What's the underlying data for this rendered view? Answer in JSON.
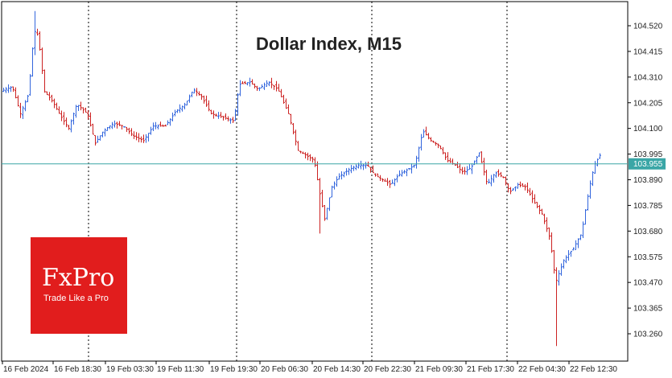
{
  "chart_data": {
    "type": "candlestick",
    "title": "Dollar Index, M15",
    "y_ticks": [
      104.52,
      104.415,
      104.31,
      104.205,
      104.1,
      103.995,
      103.89,
      103.785,
      103.68,
      103.575,
      103.47,
      103.365,
      103.26
    ],
    "ylim": [
      103.2,
      104.64
    ],
    "current_price": 103.955,
    "x_labels": [
      "16 Feb 2024",
      "16 Feb 18:30",
      "19 Feb 03:30",
      "19 Feb 11:30",
      "19 Feb 19:30",
      "20 Feb 06:30",
      "20 Feb 14:30",
      "20 Feb 22:30",
      "21 Feb 09:30",
      "21 Feb 17:30",
      "22 Feb 04:30",
      "22 Feb 12:30"
    ],
    "session_separators": [
      "16 Feb 18:30",
      "19 Feb 19:30",
      "20 Feb 22:30",
      "21 Feb 17:30"
    ],
    "series_path": [
      [
        0,
        104.25
      ],
      [
        6,
        104.26
      ],
      [
        15,
        104.27
      ],
      [
        25,
        104.16
      ],
      [
        35,
        104.24
      ],
      [
        42,
        104.5
      ],
      [
        47,
        104.48
      ],
      [
        55,
        104.25
      ],
      [
        65,
        104.21
      ],
      [
        75,
        104.15
      ],
      [
        85,
        104.1
      ],
      [
        95,
        104.2
      ],
      [
        108,
        104.16
      ],
      [
        118,
        104.04
      ],
      [
        128,
        104.09
      ],
      [
        140,
        104.12
      ],
      [
        153,
        104.11
      ],
      [
        165,
        104.07
      ],
      [
        178,
        104.05
      ],
      [
        190,
        104.11
      ],
      [
        205,
        104.11
      ],
      [
        218,
        104.17
      ],
      [
        230,
        104.2
      ],
      [
        240,
        104.26
      ],
      [
        250,
        104.23
      ],
      [
        262,
        104.16
      ],
      [
        272,
        104.15
      ],
      [
        282,
        104.14
      ],
      [
        290,
        104.13
      ],
      [
        297,
        104.28
      ],
      [
        310,
        104.29
      ],
      [
        320,
        104.26
      ],
      [
        333,
        104.29
      ],
      [
        345,
        104.26
      ],
      [
        358,
        104.16
      ],
      [
        370,
        104.01
      ],
      [
        380,
        103.99
      ],
      [
        390,
        103.97
      ],
      [
        396,
        103.85
      ],
      [
        403,
        103.73
      ],
      [
        412,
        103.86
      ],
      [
        420,
        103.9
      ],
      [
        432,
        103.93
      ],
      [
        445,
        103.95
      ],
      [
        456,
        103.95
      ],
      [
        465,
        103.91
      ],
      [
        475,
        103.89
      ],
      [
        485,
        103.87
      ],
      [
        495,
        103.91
      ],
      [
        505,
        103.93
      ],
      [
        515,
        103.95
      ],
      [
        525,
        104.09
      ],
      [
        535,
        104.05
      ],
      [
        545,
        104.03
      ],
      [
        555,
        103.97
      ],
      [
        565,
        103.95
      ],
      [
        575,
        103.92
      ],
      [
        585,
        103.94
      ],
      [
        595,
        104.0
      ],
      [
        605,
        103.87
      ],
      [
        615,
        103.92
      ],
      [
        625,
        103.9
      ],
      [
        633,
        103.84
      ],
      [
        643,
        103.87
      ],
      [
        653,
        103.86
      ],
      [
        663,
        103.8
      ],
      [
        673,
        103.75
      ],
      [
        683,
        103.65
      ],
      [
        690,
        103.47
      ],
      [
        700,
        103.56
      ],
      [
        712,
        103.61
      ],
      [
        722,
        103.67
      ],
      [
        732,
        103.86
      ],
      [
        738,
        103.95
      ],
      [
        745,
        103.99
      ]
    ],
    "wick_extremes": [
      [
        42,
        104.58,
        104.4
      ],
      [
        396,
        103.85,
        103.67
      ],
      [
        690,
        103.5,
        103.21
      ]
    ],
    "colors": {
      "up": "#3366dd",
      "down": "#cc2222",
      "price_line": "#3aa6a6",
      "price_label_bg": "#3aa6a6",
      "separator": "#000000"
    }
  },
  "logo": {
    "name": "FxPro",
    "tagline": "Trade Like a Pro",
    "color": "#e11d1d"
  }
}
